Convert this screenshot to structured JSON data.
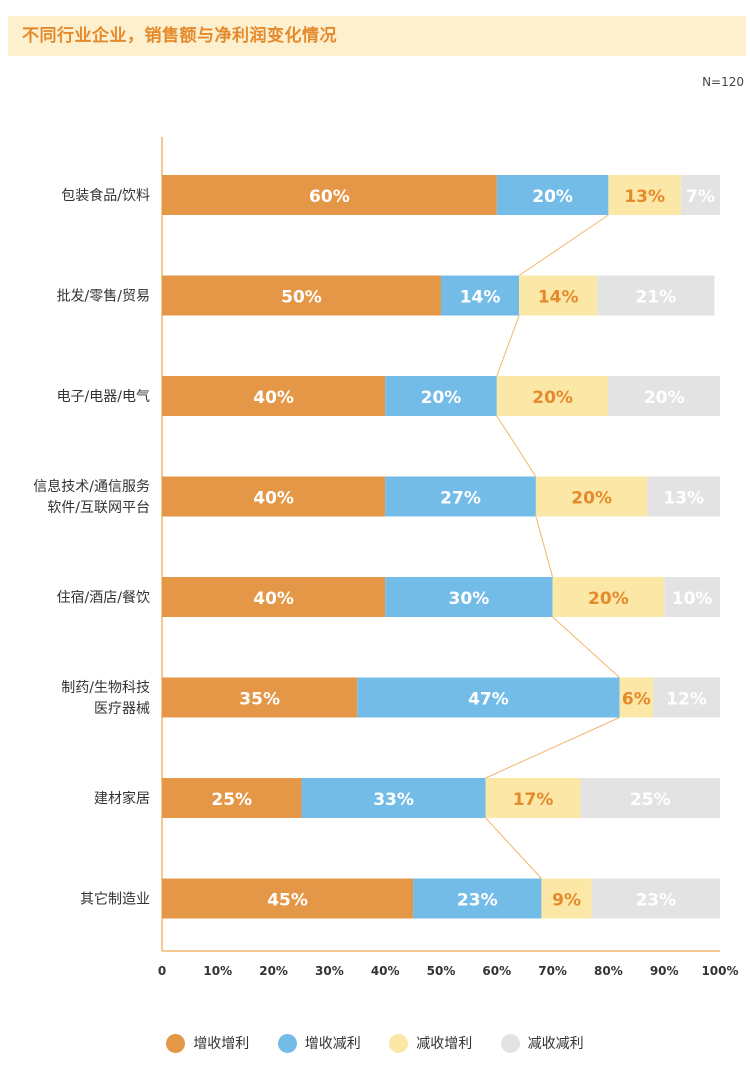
{
  "title": "不同行业企业，销售额与净利润变化情况",
  "note": "N=120",
  "colors": {
    "s1": "#e59748",
    "s2": "#74bce8",
    "s3": "#fbe8a6",
    "s4": "#e3e3e3",
    "axis": "#f2b76d",
    "connector": "#f2b76d",
    "label_dark": "#e58a2c",
    "label_light": "#ffffff"
  },
  "chart_data": {
    "type": "bar",
    "orientation": "horizontal",
    "stacked": true,
    "title": "不同行业企业，销售额与净利润变化情况",
    "categories": [
      [
        "包装食品/饮料"
      ],
      [
        "批发/零售/贸易"
      ],
      [
        "电子/电器/电气"
      ],
      [
        "信息技术/通信服务",
        "软件/互联网平台"
      ],
      [
        "住宿/酒店/餐饮"
      ],
      [
        "制药/生物科技",
        "医疗器械"
      ],
      [
        "建材家居"
      ],
      [
        "其它制造业"
      ]
    ],
    "series": [
      {
        "name": "增收增利",
        "values": [
          60,
          50,
          40,
          40,
          40,
          35,
          25,
          45
        ],
        "labels": [
          "60%",
          "50%",
          "40%",
          "40%",
          "40%",
          "35%",
          "25%",
          "45%"
        ]
      },
      {
        "name": "增收减利",
        "values": [
          20,
          14,
          20,
          27,
          30,
          47,
          33,
          23
        ],
        "labels": [
          "20%",
          "14%",
          "20%",
          "27%",
          "30%",
          "47%",
          "33%",
          "23%"
        ]
      },
      {
        "name": "减收增利",
        "values": [
          13,
          14,
          20,
          20,
          20,
          6,
          17,
          9
        ],
        "labels": [
          "13%",
          "14%",
          "20%",
          "20%",
          "20%",
          "6%",
          "17%",
          "9%"
        ]
      },
      {
        "name": "减收减利",
        "values": [
          7,
          21,
          20,
          13,
          10,
          12,
          25,
          23
        ],
        "labels": [
          "7%",
          "21%",
          "20%",
          "13%",
          "10%",
          "12%",
          "25%",
          "23%"
        ]
      }
    ],
    "xlim": [
      0,
      100
    ],
    "xticks": [
      "0",
      "10%",
      "20%",
      "30%",
      "40%",
      "50%",
      "60%",
      "70%",
      "80%",
      "90%",
      "100%"
    ],
    "connector": "line through the boundary between 增收减利 and 减收增利 segments",
    "legend_position": "bottom"
  }
}
